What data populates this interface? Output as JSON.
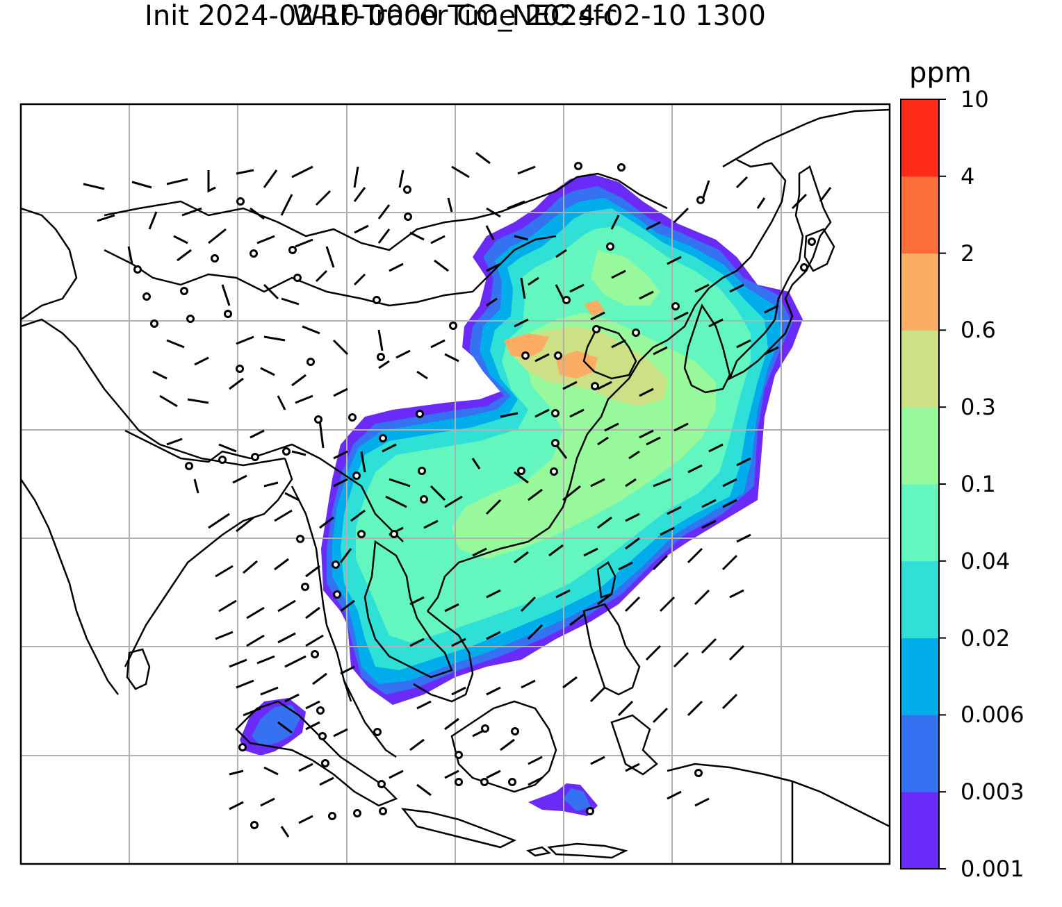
{
  "title": {
    "line1": "WRF-Tracer CO_NEC sfc",
    "line2": "Init 2024-02-10 0000 Time 2024-02-10 1300"
  },
  "colorbar": {
    "unit": "ppm",
    "levels": [
      "0.001",
      "0.003",
      "0.006",
      "0.02",
      "0.04",
      "0.1",
      "0.3",
      "0.6",
      "2",
      "4",
      "10"
    ],
    "colors": [
      "#6a2af8",
      "#3572f2",
      "#00adeb",
      "#2ee0d6",
      "#63f7bf",
      "#98f89c",
      "#cde086",
      "#fdad63",
      "#fe6e3a",
      "#ff2a18"
    ]
  },
  "map": {
    "gridlines": true,
    "coastline_color": "#000000",
    "grid_color": "#b0b0b0",
    "features": [
      "coastlines",
      "country borders",
      "wind barbs",
      "CO tracer concentration"
    ]
  }
}
